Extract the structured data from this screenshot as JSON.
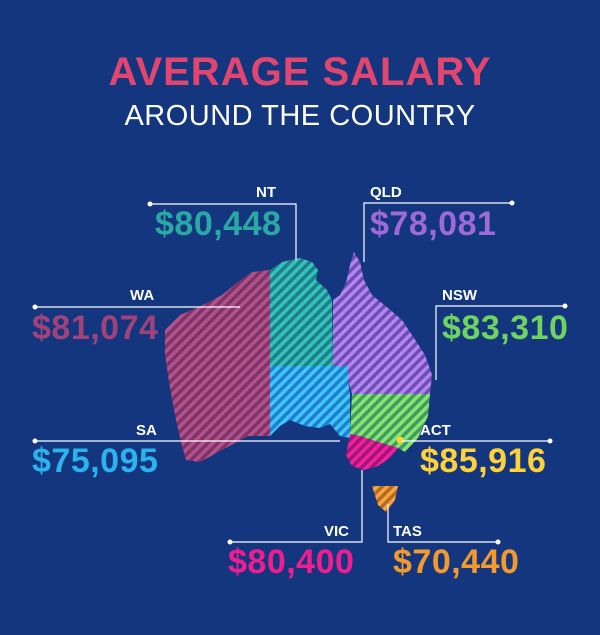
{
  "title": "AVERAGE SALARY",
  "subtitle": "AROUND THE COUNTRY",
  "colors": {
    "background": "#14367f",
    "title": "#e2466f",
    "lines": "#ffffff"
  },
  "regions": {
    "nt": {
      "label": "NT",
      "value": "$80,448",
      "color": "#2aa9a4"
    },
    "qld": {
      "label": "QLD",
      "value": "$78,081",
      "color": "#9d6ad8"
    },
    "wa": {
      "label": "WA",
      "value": "$81,074",
      "color": "#a2427a"
    },
    "nsw": {
      "label": "NSW",
      "value": "$83,310",
      "color": "#6fd360"
    },
    "sa": {
      "label": "SA",
      "value": "$75,095",
      "color": "#2ab3ee"
    },
    "act": {
      "label": "ACT",
      "value": "$85,916",
      "color": "#ffd23a"
    },
    "vic": {
      "label": "VIC",
      "value": "$80,400",
      "color": "#ef1d8f"
    },
    "tas": {
      "label": "TAS",
      "value": "$70,440",
      "color": "#f39a2e"
    }
  }
}
